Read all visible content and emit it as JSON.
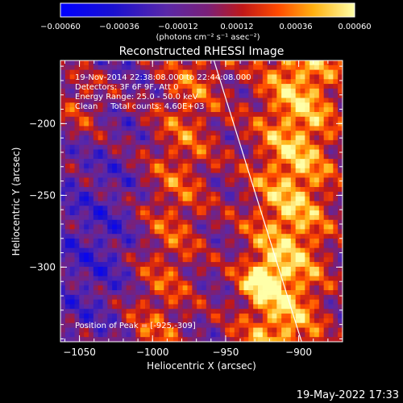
{
  "chart_data": {
    "type": "heatmap",
    "title": "Reconstructed RHESSI Image",
    "xlabel": "Heliocentric X (arcsec)",
    "ylabel": "Heliocentric Y (arcsec)",
    "xlim": [
      -1063,
      -870
    ],
    "ylim": [
      -352,
      -156
    ],
    "x_ticks": [
      -1050,
      -1000,
      -950,
      -900
    ],
    "y_ticks": [
      -200,
      -250,
      -300
    ],
    "colorbar": {
      "unit_label": "(photons cm⁻² s⁻¹ asec⁻²)",
      "range": [
        -0.0006,
        0.0006
      ],
      "tick_labels": [
        "-0.00060",
        "-0.00036",
        "-0.00012",
        "0.00012",
        "0.00036",
        "0.00060"
      ]
    },
    "annotations": [
      "19-Nov-2014 22:38:08.000 to 22:44:08.000",
      "Detectors: 3F 6F 9F, Att 0",
      "Energy Range: 25.0 - 50.0 keV",
      "Clean     Total counts: 4.60E+03"
    ],
    "peak": {
      "x": -925,
      "y": -309
    },
    "peak_label": "Position of Peak = [-925,-309]",
    "limb_line": [
      [
        -958,
        -156
      ],
      [
        -898,
        -352
      ]
    ],
    "colors": {
      "background": "#000000",
      "text": "#ffffff",
      "limb": "#ffffff"
    }
  },
  "footer": {
    "timestamp": "19-May-2022 17:33"
  }
}
